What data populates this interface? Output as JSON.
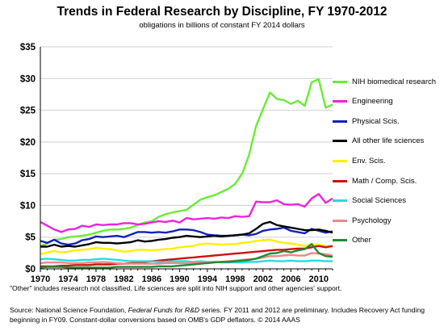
{
  "chart_data": {
    "type": "line",
    "title": "Trends in Federal Research by Discipline, FY 1970-2012",
    "subtitle": "obligations in billions of constant FY 2014 dollars",
    "xlim": [
      1970,
      2012
    ],
    "ylim": [
      0,
      35
    ],
    "y_ticks": [
      "$0",
      "$5",
      "$10",
      "$15",
      "$20",
      "$25",
      "$30",
      "$35"
    ],
    "y_tick_values": [
      0,
      5,
      10,
      15,
      20,
      25,
      30,
      35
    ],
    "x_ticks": [
      "1970",
      "1974",
      "1978",
      "1982",
      "1986",
      "1990",
      "1994",
      "1998",
      "2002",
      "2006",
      "2010"
    ],
    "x_tick_values": [
      1970,
      1974,
      1978,
      1982,
      1986,
      1990,
      1994,
      1998,
      2002,
      2006,
      2010
    ],
    "grid": "horizontal",
    "legend_position": "right",
    "x": [
      1970,
      1971,
      1972,
      1973,
      1974,
      1975,
      1976,
      1977,
      1978,
      1979,
      1980,
      1981,
      1982,
      1983,
      1984,
      1985,
      1986,
      1987,
      1988,
      1989,
      1990,
      1991,
      1992,
      1993,
      1994,
      1995,
      1996,
      1997,
      1998,
      1999,
      2000,
      2001,
      2002,
      2003,
      2004,
      2005,
      2006,
      2007,
      2008,
      2009,
      2010,
      2011,
      2012
    ],
    "series": [
      {
        "name": "NIH biomedical research",
        "color": "#66ee33",
        "values": [
          3.6,
          4.0,
          4.6,
          4.7,
          5.0,
          5.1,
          5.2,
          5.4,
          5.7,
          6.0,
          6.2,
          6.2,
          6.3,
          6.5,
          6.9,
          7.3,
          7.5,
          8.2,
          8.6,
          8.9,
          9.1,
          9.3,
          10.1,
          10.9,
          11.3,
          11.6,
          12.1,
          12.6,
          13.4,
          15.0,
          18.0,
          22.5,
          25.2,
          27.8,
          26.8,
          26.6,
          26.0,
          26.5,
          25.7,
          29.4,
          29.9,
          25.4,
          25.9
        ]
      },
      {
        "name": "Engineering",
        "color": "#ee22dd",
        "values": [
          7.4,
          6.8,
          6.2,
          5.8,
          6.2,
          6.3,
          6.8,
          6.6,
          7.0,
          6.9,
          7.0,
          7.0,
          7.2,
          7.2,
          7.0,
          7.1,
          7.3,
          7.5,
          7.4,
          7.6,
          7.3,
          8.0,
          7.8,
          7.9,
          8.0,
          7.9,
          8.1,
          8.0,
          8.3,
          8.2,
          8.3,
          10.6,
          10.5,
          10.5,
          10.8,
          10.2,
          10.1,
          10.2,
          9.8,
          11.1,
          11.8,
          10.4,
          11.1
        ]
      },
      {
        "name": "Physical Scis.",
        "color": "#1122bb",
        "values": [
          4.4,
          4.1,
          4.6,
          4.0,
          3.8,
          4.0,
          4.5,
          4.7,
          5.1,
          5.0,
          5.1,
          5.2,
          5.0,
          5.4,
          5.8,
          5.8,
          5.7,
          5.8,
          5.7,
          5.9,
          6.2,
          6.2,
          6.1,
          5.8,
          5.4,
          5.3,
          5.2,
          5.2,
          5.3,
          5.4,
          5.3,
          5.5,
          6.0,
          6.2,
          6.3,
          6.5,
          6.0,
          5.8,
          5.6,
          6.3,
          6.0,
          5.7,
          5.9
        ]
      },
      {
        "name": "All other life sciences",
        "color": "#000000",
        "values": [
          3.5,
          3.5,
          3.8,
          3.5,
          3.6,
          3.5,
          3.7,
          3.9,
          4.2,
          4.1,
          4.1,
          4.0,
          4.1,
          4.2,
          4.5,
          4.3,
          4.4,
          4.6,
          4.7,
          4.9,
          5.0,
          5.2,
          5.1,
          5.0,
          5.1,
          5.2,
          5.1,
          5.2,
          5.3,
          5.4,
          5.6,
          6.3,
          7.1,
          7.4,
          6.9,
          6.7,
          6.5,
          6.3,
          6.1,
          6.1,
          6.2,
          6.0,
          5.7
        ]
      },
      {
        "name": "Env. Scis.",
        "color": "#ffee00",
        "values": [
          2.3,
          2.6,
          2.8,
          2.6,
          2.7,
          2.9,
          3.0,
          3.1,
          3.3,
          3.2,
          3.1,
          2.9,
          2.7,
          2.8,
          3.0,
          3.0,
          2.9,
          3.0,
          3.1,
          3.2,
          3.4,
          3.5,
          3.6,
          3.9,
          4.0,
          3.9,
          3.8,
          3.9,
          3.9,
          4.1,
          4.2,
          4.4,
          4.5,
          4.6,
          4.3,
          4.1,
          4.0,
          3.8,
          3.6,
          3.9,
          3.8,
          3.6,
          3.4
        ]
      },
      {
        "name": "Math / Comp. Scis.",
        "color": "#cc1111",
        "values": [
          0.4,
          0.4,
          0.4,
          0.5,
          0.5,
          0.6,
          0.6,
          0.6,
          0.7,
          0.7,
          0.7,
          0.8,
          0.8,
          0.9,
          1.0,
          1.1,
          1.2,
          1.3,
          1.4,
          1.5,
          1.6,
          1.7,
          1.8,
          1.9,
          2.0,
          2.1,
          2.2,
          2.3,
          2.4,
          2.5,
          2.6,
          2.7,
          2.8,
          2.9,
          3.0,
          3.0,
          3.1,
          3.2,
          3.2,
          3.4,
          3.6,
          3.4,
          3.6
        ]
      },
      {
        "name": "Social Sciences",
        "color": "#22dddd",
        "values": [
          1.5,
          1.6,
          1.5,
          1.4,
          1.3,
          1.3,
          1.4,
          1.4,
          1.5,
          1.6,
          1.5,
          1.4,
          1.3,
          1.2,
          1.2,
          1.2,
          1.2,
          1.1,
          1.1,
          1.2,
          1.2,
          1.2,
          1.1,
          1.2,
          1.1,
          1.1,
          1.0,
          1.0,
          1.0,
          1.0,
          1.1,
          1.1,
          1.2,
          1.3,
          1.2,
          1.2,
          1.3,
          1.2,
          1.2,
          1.3,
          1.3,
          1.2,
          1.2
        ]
      },
      {
        "name": "Psychology",
        "color": "#ee8888",
        "values": [
          0.9,
          1.0,
          1.0,
          1.0,
          0.9,
          0.9,
          0.9,
          1.0,
          1.0,
          1.1,
          1.0,
          0.9,
          0.8,
          0.8,
          0.8,
          0.8,
          0.8,
          0.8,
          0.9,
          0.9,
          0.9,
          0.9,
          1.0,
          1.0,
          1.0,
          1.1,
          1.1,
          1.2,
          1.3,
          1.4,
          1.5,
          1.6,
          1.8,
          2.0,
          2.0,
          2.1,
          2.2,
          2.1,
          2.1,
          2.5,
          2.4,
          2.3,
          2.1
        ]
      },
      {
        "name": "Other",
        "color": "#228833",
        "values": [
          0.2,
          0.3,
          0.3,
          0.3,
          0.2,
          0.2,
          0.2,
          0.2,
          0.2,
          0.2,
          0.2,
          0.3,
          0.3,
          0.3,
          0.3,
          0.3,
          0.3,
          0.4,
          0.4,
          0.4,
          0.5,
          0.6,
          0.7,
          0.8,
          0.9,
          1.0,
          1.1,
          1.1,
          1.2,
          1.3,
          1.4,
          1.6,
          2.0,
          2.4,
          2.5,
          2.8,
          2.6,
          2.9,
          3.1,
          3.9,
          2.5,
          2.0,
          1.9
        ]
      }
    ]
  },
  "footnote": "\"Other\" includes research not classified. Life sciences are split into NIH  support and other agencies' support.",
  "source": {
    "prefix": "Source: National Science Foundation, ",
    "italic": "Federal Funds for R&D",
    "suffix": " series. FY 2011 and 2012 are preliminary. Includes Recovery Act funding beginning in FY09. Constant-dollar conversions based on OMB's GDP deflators. © 2014 AAAS"
  }
}
